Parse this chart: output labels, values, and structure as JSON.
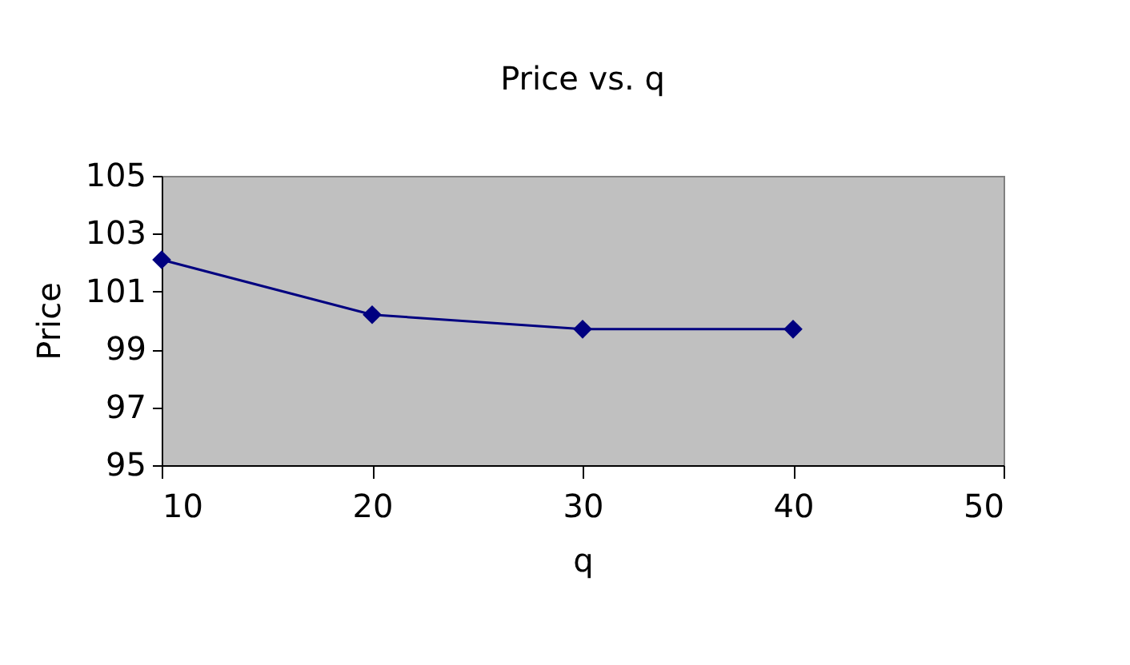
{
  "chart_data": {
    "type": "line",
    "title": "Price vs. q",
    "xlabel": "q",
    "ylabel": "Price",
    "x": [
      10,
      20,
      30,
      40
    ],
    "series": [
      {
        "color": "#000080",
        "values": [
          102.1,
          100.2,
          99.7,
          99.7
        ]
      }
    ],
    "xlim": [
      10,
      50
    ],
    "xticks": [
      10,
      20,
      30,
      40,
      50
    ],
    "ylim": [
      95,
      105
    ],
    "yticks": [
      95,
      97,
      99,
      101,
      103,
      105
    ],
    "marker": "diamond",
    "line_style": "solid"
  }
}
